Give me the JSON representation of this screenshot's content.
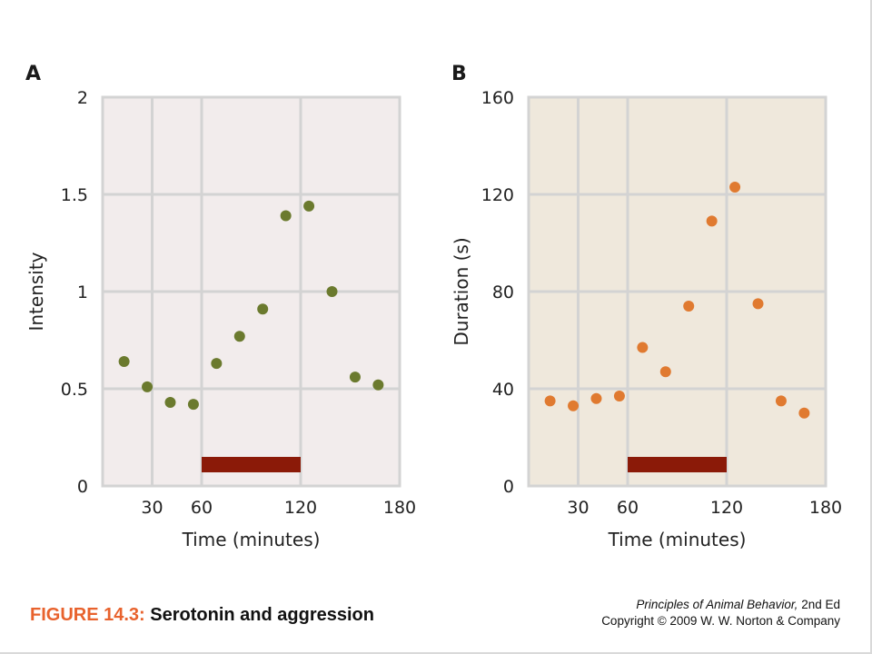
{
  "chart_data": [
    {
      "type": "scatter",
      "panel": "A",
      "xlabel": "Time (minutes)",
      "ylabel": "Intensity",
      "xlim": [
        0,
        180
      ],
      "ylim": [
        0,
        2
      ],
      "x_ticks": [
        30,
        60,
        120,
        180
      ],
      "y_ticks": [
        0,
        0.5,
        1,
        1.5,
        2
      ],
      "y_tick_labels": [
        "0",
        "0.5",
        "1",
        "1.5",
        "2"
      ],
      "grid": true,
      "background": "#f2ecec",
      "marker_color": "#6b7a2e",
      "treatment_bar": {
        "start": 60,
        "end": 120,
        "color": "#8b1a08"
      },
      "points": [
        {
          "x": 13,
          "y": 0.64
        },
        {
          "x": 27,
          "y": 0.51
        },
        {
          "x": 41,
          "y": 0.43
        },
        {
          "x": 55,
          "y": 0.42
        },
        {
          "x": 69,
          "y": 0.63
        },
        {
          "x": 83,
          "y": 0.77
        },
        {
          "x": 97,
          "y": 0.91
        },
        {
          "x": 111,
          "y": 1.39
        },
        {
          "x": 125,
          "y": 1.44
        },
        {
          "x": 139,
          "y": 1.0
        },
        {
          "x": 153,
          "y": 0.56
        },
        {
          "x": 167,
          "y": 0.52
        }
      ]
    },
    {
      "type": "scatter",
      "panel": "B",
      "xlabel": "Time (minutes)",
      "ylabel": "Duration (s)",
      "xlim": [
        0,
        180
      ],
      "ylim": [
        0,
        160
      ],
      "x_ticks": [
        30,
        60,
        120,
        180
      ],
      "y_ticks": [
        0,
        40,
        80,
        120,
        160
      ],
      "y_tick_labels": [
        "0",
        "40",
        "80",
        "120",
        "160"
      ],
      "grid": true,
      "background": "#efe8dc",
      "marker_color": "#e07a30",
      "treatment_bar": {
        "start": 60,
        "end": 120,
        "color": "#8b1a08"
      },
      "points": [
        {
          "x": 13,
          "y": 35
        },
        {
          "x": 27,
          "y": 33
        },
        {
          "x": 41,
          "y": 36
        },
        {
          "x": 55,
          "y": 37
        },
        {
          "x": 69,
          "y": 57
        },
        {
          "x": 83,
          "y": 47
        },
        {
          "x": 97,
          "y": 74
        },
        {
          "x": 111,
          "y": 109
        },
        {
          "x": 125,
          "y": 123
        },
        {
          "x": 139,
          "y": 75
        },
        {
          "x": 153,
          "y": 35
        },
        {
          "x": 167,
          "y": 30
        }
      ]
    }
  ],
  "caption": {
    "figure_label": "FIGURE 14.3:",
    "title": "Serotonin and aggression",
    "figure_label_color": "#e8622d"
  },
  "credit": {
    "book": "Principles of Animal Behavior,",
    "edition": "2nd Ed",
    "copyright": "Copyright © 2009 W. W. Norton & Company"
  }
}
